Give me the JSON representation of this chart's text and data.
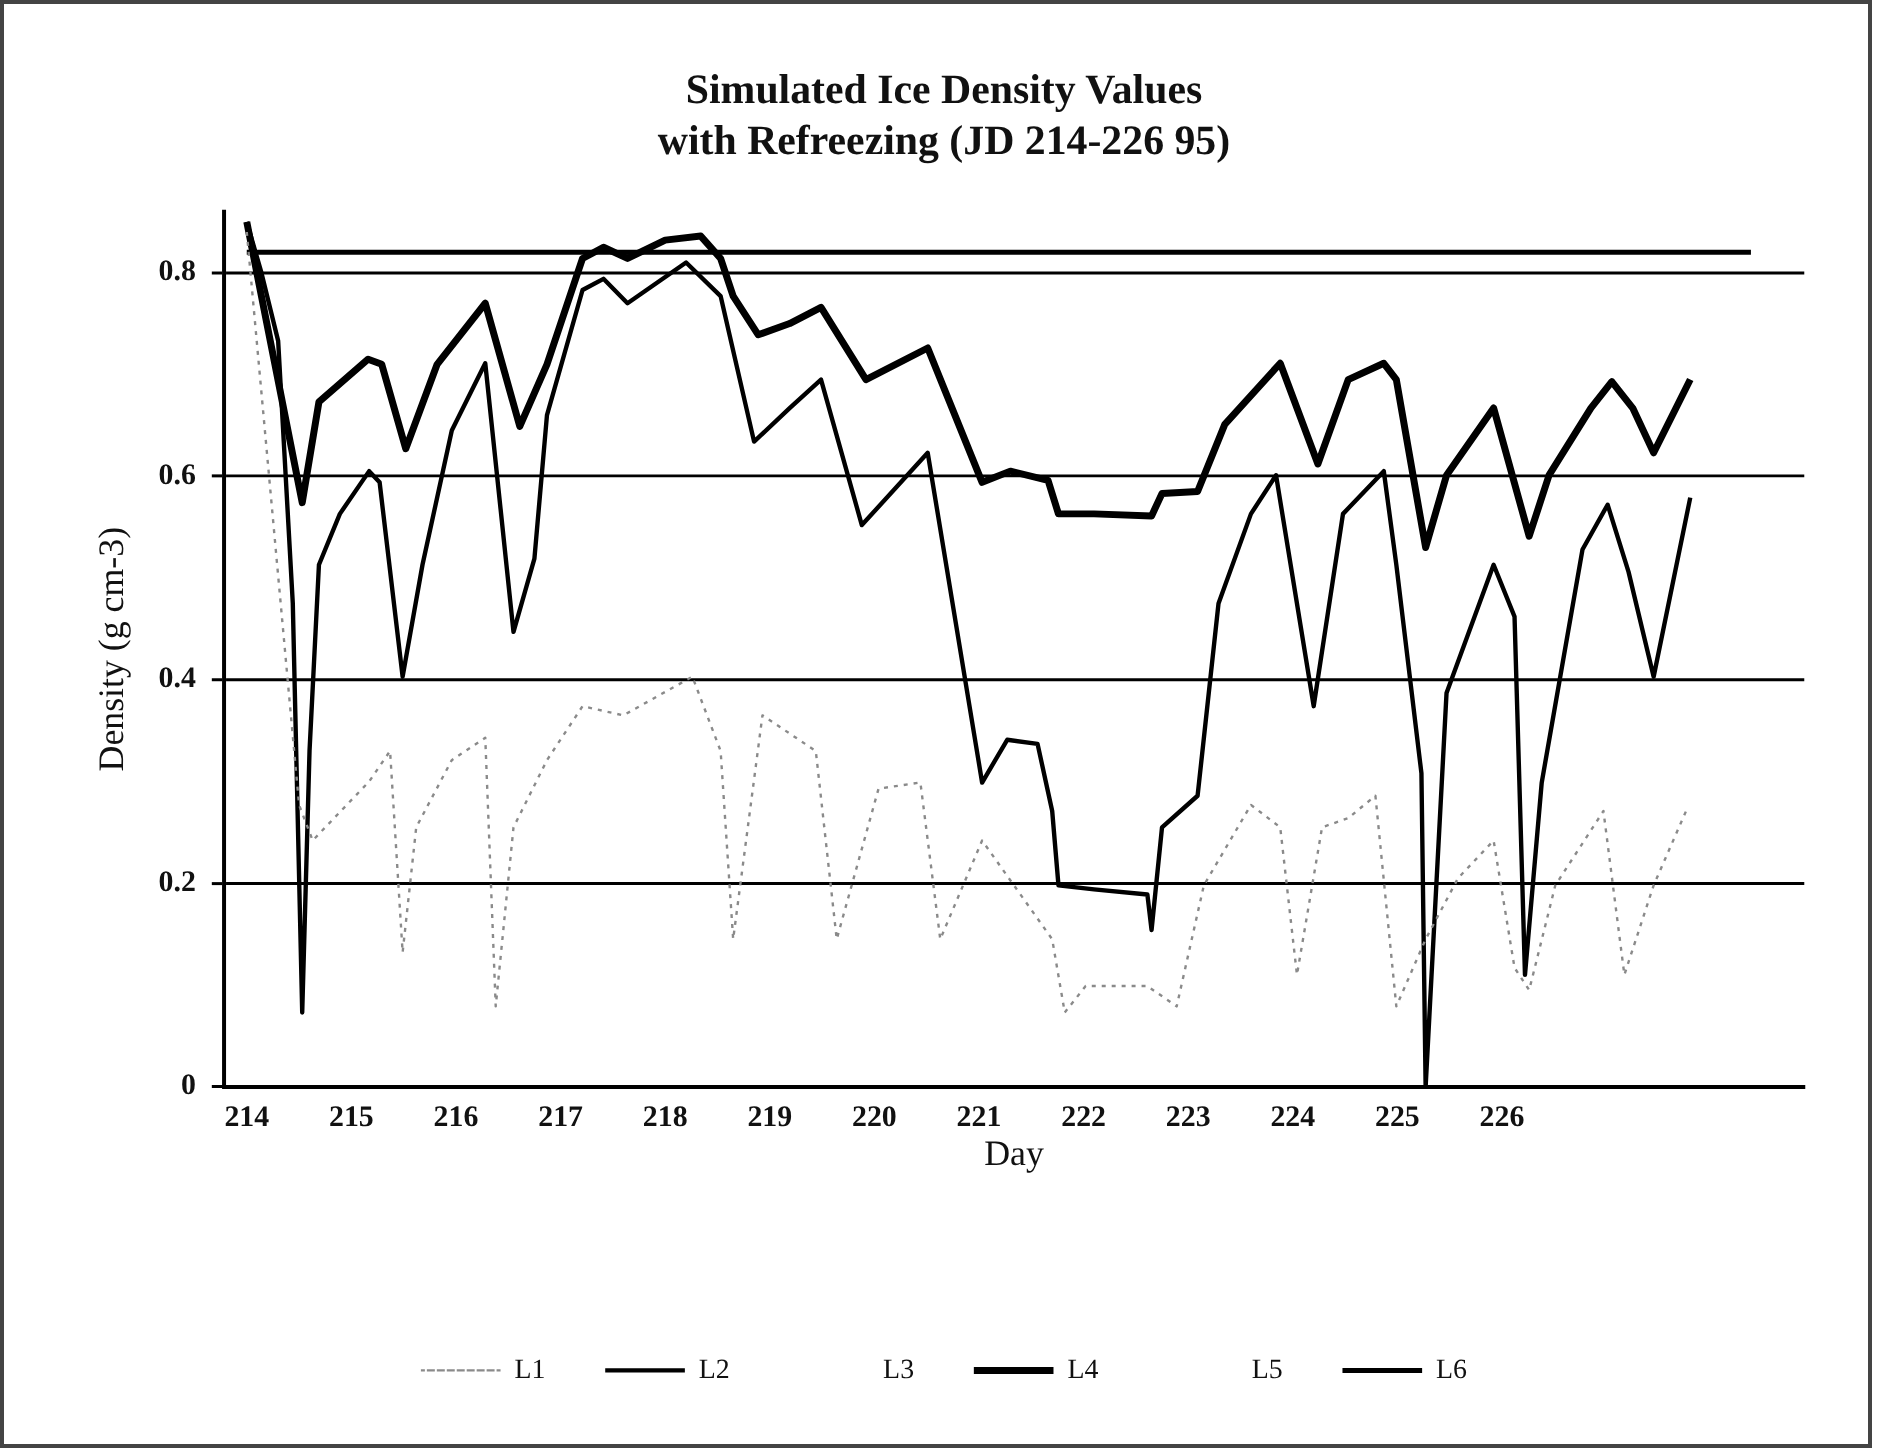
{
  "chart_data": {
    "type": "line",
    "title": [
      "Simulated Ice Density Values",
      "with Refreezing (JD 214-226 95)"
    ],
    "xlabel": "Day",
    "ylabel": "Density (g cm-3)",
    "xlim": [
      213.78,
      228.89
    ],
    "xticks": [
      214,
      215,
      216,
      217,
      218,
      219,
      220,
      221,
      222,
      223,
      224,
      225,
      226
    ],
    "ylim": [
      0,
      0.86
    ],
    "yticks": [
      0,
      0.2,
      0.4,
      0.6,
      0.8
    ],
    "grid": "y",
    "legend": "bottom",
    "marker": "none",
    "series": [
      {
        "name": "L1",
        "color": "#8a8a8a",
        "line_style": "dotted",
        "x": [
          214.0,
          214.5,
          214.63,
          215.17,
          215.37,
          215.49,
          215.62,
          215.96,
          216.28,
          216.38,
          216.55,
          216.87,
          217.21,
          217.6,
          218.26,
          218.53,
          218.65,
          218.93,
          219.44,
          219.64,
          220.04,
          220.44,
          220.63,
          221.03,
          221.7,
          221.82,
          222.02,
          222.61,
          222.89,
          223.15,
          223.6,
          223.88,
          224.04,
          224.28,
          224.53,
          224.79,
          224.99,
          225.27,
          225.58,
          225.92,
          226.12,
          226.26,
          226.51,
          226.97,
          227.17,
          227.45,
          227.76
        ],
        "values": [
          0.84,
          0.277,
          0.242,
          0.3,
          0.33,
          0.132,
          0.255,
          0.321,
          0.343,
          0.079,
          0.255,
          0.321,
          0.374,
          0.365,
          0.403,
          0.33,
          0.145,
          0.365,
          0.33,
          0.145,
          0.293,
          0.299,
          0.145,
          0.242,
          0.145,
          0.073,
          0.099,
          0.099,
          0.079,
          0.198,
          0.277,
          0.255,
          0.11,
          0.255,
          0.264,
          0.286,
          0.079,
          0.145,
          0.205,
          0.242,
          0.117,
          0.095,
          0.198,
          0.271,
          0.11,
          0.198,
          0.271
        ]
      },
      {
        "name": "L2",
        "color": "#000000",
        "x": [
          214.0,
          214.14,
          214.3,
          214.44,
          214.53,
          214.6,
          214.69,
          214.89,
          215.17,
          215.27,
          215.49,
          215.68,
          215.96,
          216.28,
          216.55,
          216.75,
          216.87,
          217.21,
          217.41,
          217.64,
          218.2,
          218.53,
          218.85,
          219.19,
          219.49,
          219.88,
          220.51,
          221.03,
          221.27,
          221.56,
          221.7,
          221.76,
          222.1,
          222.61,
          222.65,
          222.75,
          223.09,
          223.29,
          223.6,
          223.84,
          224.2,
          224.48,
          224.87,
          224.99,
          225.23,
          225.27,
          225.47,
          225.92,
          226.12,
          226.22,
          226.38,
          226.77,
          227.01,
          227.21,
          227.45,
          227.8
        ],
        "values": [
          0.85,
          0.8,
          0.733,
          0.475,
          0.073,
          0.33,
          0.513,
          0.563,
          0.605,
          0.594,
          0.403,
          0.513,
          0.645,
          0.711,
          0.447,
          0.519,
          0.66,
          0.783,
          0.794,
          0.77,
          0.81,
          0.777,
          0.634,
          0.667,
          0.695,
          0.552,
          0.623,
          0.299,
          0.341,
          0.337,
          0.271,
          0.198,
          0.194,
          0.189,
          0.154,
          0.255,
          0.286,
          0.475,
          0.563,
          0.601,
          0.374,
          0.563,
          0.605,
          0.513,
          0.308,
          0,
          0.387,
          0.513,
          0.462,
          0.11,
          0.299,
          0.528,
          0.572,
          0.506,
          0.403,
          0.579
        ]
      },
      {
        "name": "L3"
      },
      {
        "name": "L4",
        "color": "#000000",
        "x": [
          214.0,
          214.53,
          214.69,
          215.16,
          215.29,
          215.52,
          215.82,
          216.28,
          216.61,
          216.87,
          217.21,
          217.41,
          217.64,
          218.0,
          218.34,
          218.53,
          218.65,
          218.89,
          219.19,
          219.49,
          219.92,
          220.51,
          221.03,
          221.3,
          221.66,
          221.76,
          222.1,
          222.65,
          222.75,
          223.09,
          223.35,
          223.88,
          224.24,
          224.53,
          224.87,
          224.99,
          225.27,
          225.47,
          225.92,
          226.26,
          226.45,
          226.85,
          227.05,
          227.25,
          227.45,
          227.8
        ],
        "values": [
          0.85,
          0.574,
          0.673,
          0.715,
          0.71,
          0.627,
          0.71,
          0.77,
          0.649,
          0.71,
          0.814,
          0.825,
          0.814,
          0.832,
          0.836,
          0.814,
          0.777,
          0.739,
          0.75,
          0.766,
          0.695,
          0.726,
          0.594,
          0.605,
          0.596,
          0.563,
          0.563,
          0.561,
          0.583,
          0.585,
          0.651,
          0.711,
          0.612,
          0.695,
          0.711,
          0.695,
          0.53,
          0.601,
          0.667,
          0.541,
          0.601,
          0.667,
          0.693,
          0.667,
          0.623,
          0.695
        ]
      },
      {
        "name": "L5"
      },
      {
        "name": "L6",
        "color": "#000000",
        "x": [
          214,
          228.38
        ],
        "values": [
          0.82,
          0.82
        ]
      }
    ]
  }
}
